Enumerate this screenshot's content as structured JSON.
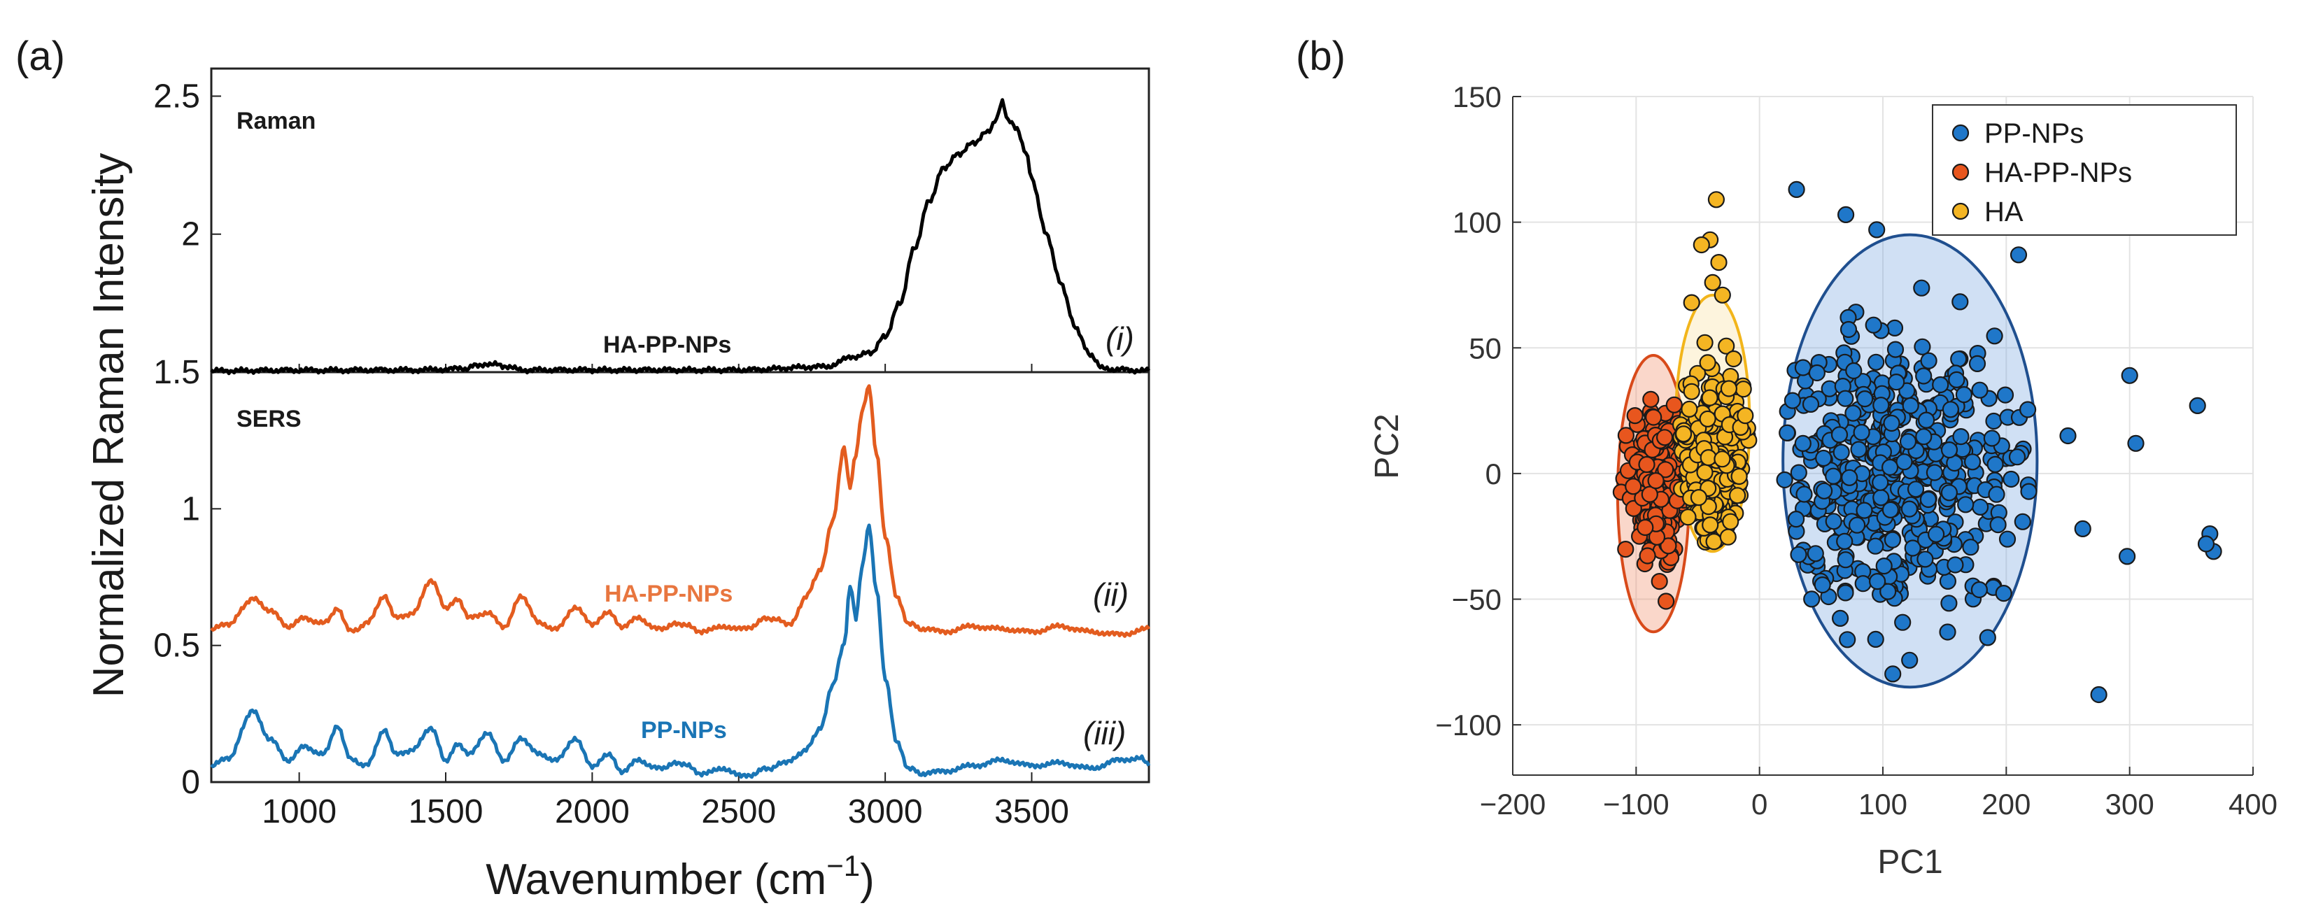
{
  "panel_a": {
    "label": "(a)",
    "chart_data": {
      "type": "line",
      "xlabel_base": "Wavenumber (cm",
      "xlabel_sup": "−1",
      "xlabel_tail": ")",
      "ylabel": "Normalized Raman Intensity",
      "xlim": [
        700,
        3900
      ],
      "x_ticks": [
        1000,
        1500,
        2000,
        2500,
        3000,
        3500
      ],
      "top_panel": {
        "title": "Raman",
        "ylim": [
          1.5,
          2.6
        ],
        "y_tick_labels": [
          "1.5",
          "2",
          "2.5"
        ],
        "series": [
          {
            "name": "HA-PP-NPs",
            "roman": "(i)",
            "color": "#000000",
            "x": [
              700,
              1000,
              1400,
              1560,
              1610,
              1650,
              1700,
              1760,
              2000,
              2500,
              2800,
              2870,
              2950,
              3000,
              3050,
              3100,
              3150,
              3200,
              3250,
              3300,
              3350,
              3380,
              3400,
              3420,
              3450,
              3480,
              3500,
              3550,
              3600,
              3650,
              3700,
              3740,
              3780,
              3900
            ],
            "y": [
              1.505,
              1.507,
              1.508,
              1.512,
              1.525,
              1.532,
              1.522,
              1.508,
              1.508,
              1.508,
              1.52,
              1.55,
              1.57,
              1.63,
              1.75,
              1.95,
              2.12,
              2.24,
              2.29,
              2.33,
              2.37,
              2.42,
              2.48,
              2.41,
              2.38,
              2.3,
              2.2,
              2.0,
              1.82,
              1.66,
              1.56,
              1.52,
              1.51,
              1.505
            ]
          }
        ]
      },
      "bottom_panel": {
        "title": "SERS",
        "ylim": [
          0,
          1.5
        ],
        "y_tick_labels": [
          "0",
          "0.5",
          "1",
          "1.5"
        ],
        "series": [
          {
            "name": "HA-PP-NPs",
            "roman": "(ii)",
            "color": "#e35c1f",
            "x": [
              700,
              760,
              840,
              900,
              960,
              1020,
              1080,
              1130,
              1180,
              1230,
              1290,
              1330,
              1390,
              1450,
              1500,
              1540,
              1580,
              1640,
              1700,
              1760,
              1820,
              1880,
              1940,
              2000,
              2060,
              2100,
              2160,
              2220,
              2300,
              2380,
              2450,
              2520,
              2600,
              2680,
              2730,
              2780,
              2820,
              2860,
              2880,
              2900,
              2920,
              2945,
              2970,
              3000,
              3040,
              3080,
              3130,
              3200,
              3300,
              3400,
              3500,
              3600,
              3700,
              3800,
              3900
            ],
            "y": [
              0.56,
              0.58,
              0.67,
              0.63,
              0.57,
              0.6,
              0.58,
              0.63,
              0.55,
              0.58,
              0.68,
              0.6,
              0.62,
              0.74,
              0.64,
              0.67,
              0.6,
              0.62,
              0.57,
              0.68,
              0.58,
              0.56,
              0.64,
              0.58,
              0.62,
              0.57,
              0.6,
              0.56,
              0.58,
              0.55,
              0.57,
              0.56,
              0.6,
              0.58,
              0.68,
              0.78,
              0.95,
              1.22,
              1.08,
              1.2,
              1.35,
              1.45,
              1.2,
              0.9,
              0.68,
              0.58,
              0.56,
              0.55,
              0.57,
              0.56,
              0.55,
              0.57,
              0.55,
              0.54,
              0.56
            ]
          },
          {
            "name": "PP-NPs",
            "roman": "(iii)",
            "color": "#1a75b5",
            "x": [
              700,
              760,
              840,
              900,
              960,
              1020,
              1080,
              1130,
              1180,
              1230,
              1290,
              1330,
              1390,
              1450,
              1500,
              1540,
              1580,
              1640,
              1700,
              1760,
              1820,
              1880,
              1940,
              2000,
              2060,
              2100,
              2160,
              2220,
              2300,
              2380,
              2450,
              2520,
              2600,
              2680,
              2730,
              2780,
              2820,
              2860,
              2880,
              2900,
              2920,
              2945,
              2970,
              3000,
              3040,
              3080,
              3130,
              3200,
              3300,
              3400,
              3500,
              3600,
              3700,
              3800,
              3870,
              3900
            ],
            "y": [
              0.06,
              0.09,
              0.26,
              0.16,
              0.08,
              0.13,
              0.1,
              0.2,
              0.08,
              0.06,
              0.19,
              0.1,
              0.12,
              0.2,
              0.08,
              0.14,
              0.1,
              0.18,
              0.08,
              0.16,
              0.1,
              0.08,
              0.16,
              0.06,
              0.1,
              0.04,
              0.08,
              0.05,
              0.07,
              0.03,
              0.05,
              0.02,
              0.05,
              0.08,
              0.12,
              0.2,
              0.35,
              0.5,
              0.72,
              0.6,
              0.78,
              0.94,
              0.7,
              0.38,
              0.15,
              0.05,
              0.03,
              0.04,
              0.06,
              0.08,
              0.06,
              0.07,
              0.05,
              0.08,
              0.09,
              0.06
            ]
          }
        ]
      }
    }
  },
  "panel_b": {
    "label": "(b)",
    "chart_data": {
      "type": "scatter",
      "xlabel": "PC1",
      "ylabel": "PC2",
      "xlim": [
        -200,
        400
      ],
      "ylim": [
        -120,
        150
      ],
      "x_ticks": [
        -200,
        -100,
        0,
        100,
        200,
        300,
        400
      ],
      "x_tick_labels": [
        "−200",
        "−100",
        "0",
        "100",
        "200",
        "300",
        "400"
      ],
      "y_ticks": [
        -100,
        -50,
        0,
        50,
        100,
        150
      ],
      "y_tick_labels": [
        "−100",
        "−50",
        "0",
        "50",
        "100",
        "150"
      ],
      "grid": true,
      "legend_position": "top-right",
      "series": [
        {
          "name": "PP-NPs",
          "color": "#1f77c9",
          "n": 450,
          "center": [
            110,
            0
          ],
          "spread": [
            55,
            32
          ],
          "ellipse": {
            "cx": 122,
            "cy": 5,
            "rx": 103,
            "ry": 90
          }
        },
        {
          "name": "HA-PP-NPs",
          "color": "#e8561e",
          "n": 260,
          "center": [
            -85,
            -5
          ],
          "spread": [
            10,
            14
          ],
          "ellipse": {
            "cx": -86,
            "cy": -8,
            "rx": 29,
            "ry": 55
          }
        },
        {
          "name": "HA",
          "color": "#f4b523",
          "n": 260,
          "center": [
            -38,
            5
          ],
          "spread": [
            18,
            16
          ],
          "ellipse": {
            "cx": -38,
            "cy": 20,
            "rx": 30,
            "ry": 51
          }
        }
      ],
      "outliers": [
        {
          "series": "PP-NPs",
          "x": 30,
          "y": 113
        },
        {
          "series": "PP-NPs",
          "x": 70,
          "y": 103
        },
        {
          "series": "PP-NPs",
          "x": 95,
          "y": 97
        },
        {
          "series": "PP-NPs",
          "x": 210,
          "y": 87
        },
        {
          "series": "PP-NPs",
          "x": 275,
          "y": -88
        },
        {
          "series": "PP-NPs",
          "x": 300,
          "y": 39
        },
        {
          "series": "PP-NPs",
          "x": 305,
          "y": 12
        },
        {
          "series": "PP-NPs",
          "x": 355,
          "y": 27
        },
        {
          "series": "PP-NPs",
          "x": 365,
          "y": -24
        },
        {
          "series": "PP-NPs",
          "x": 368,
          "y": -31
        },
        {
          "series": "PP-NPs",
          "x": 362,
          "y": -28
        },
        {
          "series": "PP-NPs",
          "x": 298,
          "y": -33
        },
        {
          "series": "PP-NPs",
          "x": 262,
          "y": -22
        },
        {
          "series": "PP-NPs",
          "x": 250,
          "y": 15
        },
        {
          "series": "HA",
          "x": -35,
          "y": 109
        },
        {
          "series": "HA",
          "x": -40,
          "y": 93
        },
        {
          "series": "HA",
          "x": -47,
          "y": 91
        },
        {
          "series": "HA",
          "x": -33,
          "y": 84
        },
        {
          "series": "HA",
          "x": -38,
          "y": 76
        },
        {
          "series": "HA",
          "x": -30,
          "y": 71
        },
        {
          "series": "HA",
          "x": -55,
          "y": 68
        }
      ]
    }
  }
}
